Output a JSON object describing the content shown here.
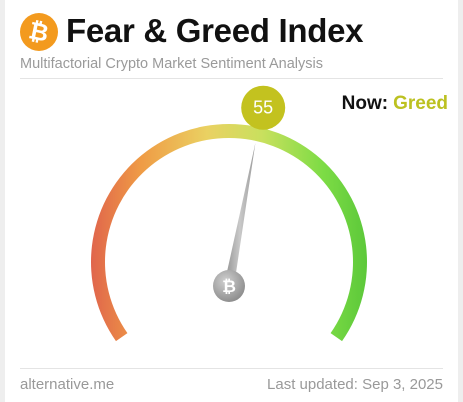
{
  "header": {
    "logo_icon": "bitcoin-icon",
    "logo_glyph": "₿",
    "logo_color": "#f39a1e",
    "title": "Fear & Greed Index",
    "subtitle": "Multifactorial Crypto Market Sentiment Analysis"
  },
  "status": {
    "now_label": "Now:",
    "now_value": "Greed",
    "now_color": "#bcc121"
  },
  "gauge": {
    "min": 0,
    "max": 100,
    "value": 55,
    "value_label": "55",
    "badge_color": "#c3c21f",
    "hub_glyph": "₿",
    "hub_icon": "bitcoin-icon",
    "gradient_colors": [
      "#e0654c",
      "#ef9b45",
      "#ead162",
      "#c9e05e",
      "#7ddc45",
      "#5cc83a"
    ]
  },
  "footer": {
    "source": "alternative.me",
    "last_updated": "Last updated: Sep 3, 2025"
  }
}
